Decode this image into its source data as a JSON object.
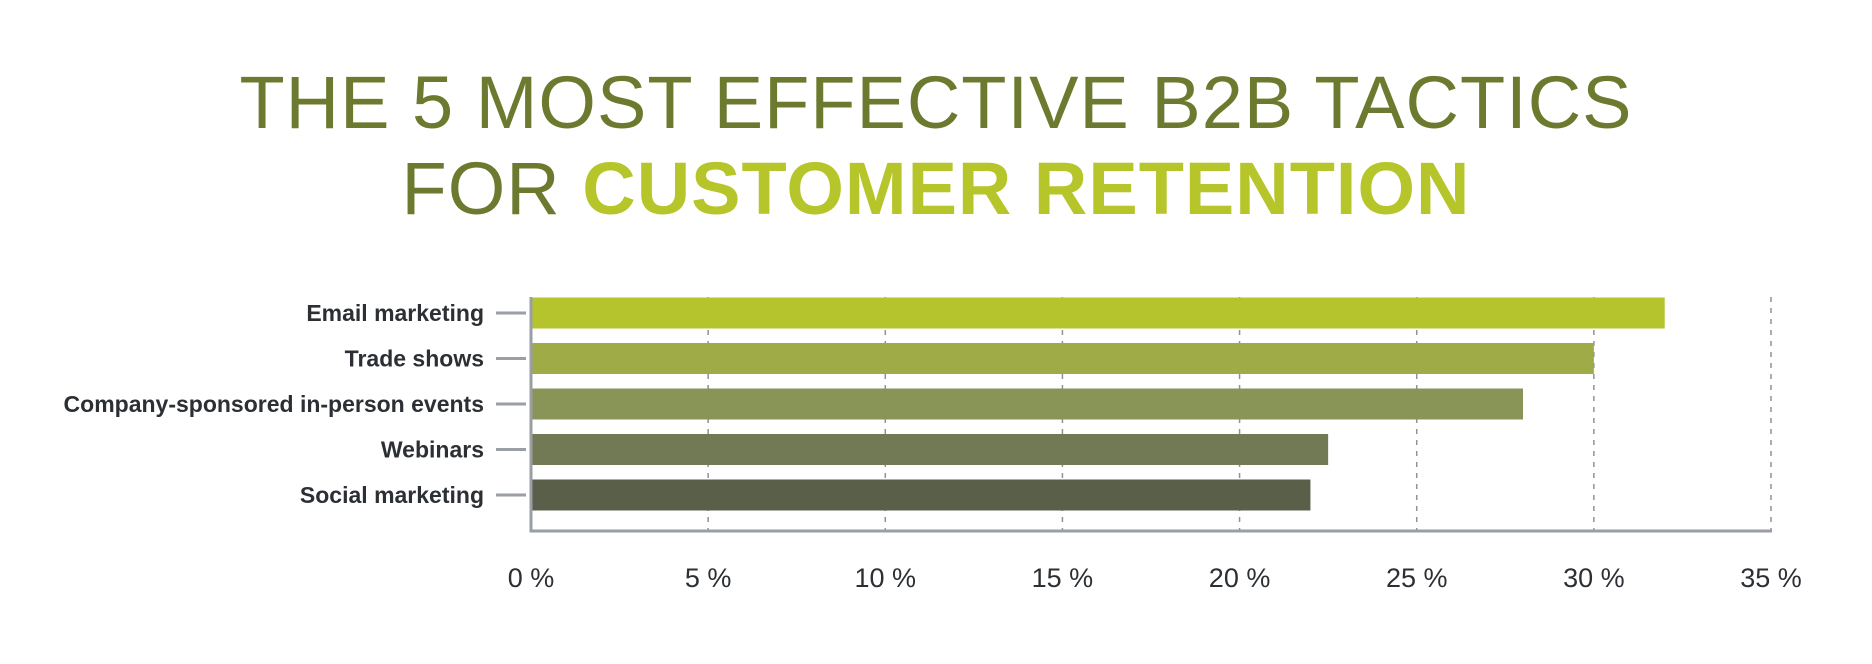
{
  "chart_data": {
    "type": "bar",
    "orientation": "horizontal",
    "title_line1": "THE 5 MOST EFFECTIVE B2B TACTICS",
    "title_line2_prefix": "FOR ",
    "title_line2_emphasis": "CUSTOMER RETENTION",
    "categories": [
      "Email marketing",
      "Trade shows",
      "Company-sponsored in-person events",
      "Webinars",
      "Social marketing"
    ],
    "values": [
      32,
      30,
      28,
      22.5,
      22
    ],
    "xlim": [
      0,
      35
    ],
    "xticks": [
      0,
      5,
      10,
      15,
      20,
      25,
      30,
      35
    ],
    "tick_suffix": " %",
    "grid": "vertical-dashed",
    "bar_colors": [
      "#b5c42c",
      "#9eab46",
      "#899557",
      "#717a54",
      "#5a5f4a"
    ],
    "axis_color": "#9a9ea5"
  }
}
